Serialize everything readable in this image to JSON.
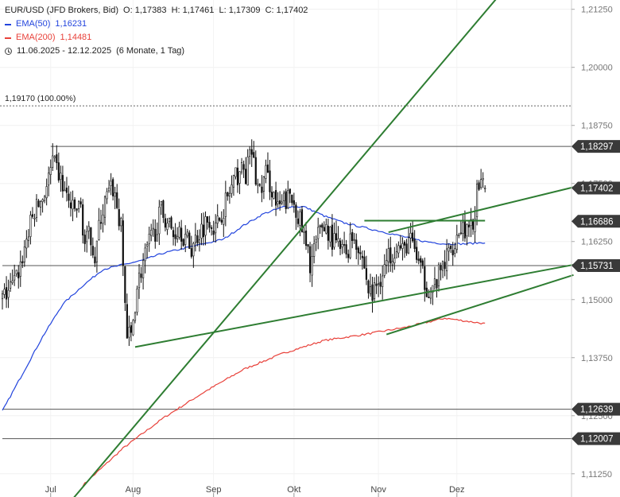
{
  "legend": {
    "symbol": "EUR/USD (JFD Brokers, Bid)",
    "ohlc": "O: 1,17383  H: 1,17461  L: 1,17309  C: 1,17402",
    "ema50_label": "EMA(50)",
    "ema50_value": "1,16231",
    "ema200_label": "EMA(200)",
    "ema200_value": "1,14481",
    "range": "11.06.2025 - 12.12.2025",
    "range_note": "(6 Monate, 1 Tag)"
  },
  "colors": {
    "candles": "#111111",
    "ema50": "#2244dd",
    "ema200": "#e8413a",
    "trendlines": "#2e7d32",
    "levels": "#555555",
    "tag_bg": "#3a3a3a"
  },
  "chart_data": {
    "type": "candlestick",
    "x_ticks": [
      "Jul",
      "Aug",
      "Sep",
      "Okt",
      "Nov",
      "Dez"
    ],
    "y_ticks": [
      "1,21250",
      "1,20000",
      "1,18750",
      "1,17500",
      "1,16250",
      "1,15000",
      "1,13750",
      "1,12500",
      "1,11250"
    ],
    "ylim": [
      1.1075,
      1.2145
    ],
    "price_tags": [
      {
        "label": "1,18297",
        "value": 1.18297
      },
      {
        "label": "1,17402",
        "value": 1.17402
      },
      {
        "label": "1,16686",
        "value": 1.16686
      },
      {
        "label": "1,15731",
        "value": 1.15731
      },
      {
        "label": "1,12639",
        "value": 1.12639
      },
      {
        "label": "1,12007",
        "value": 1.12007
      }
    ],
    "fib_level": {
      "label": "1,19170 (100.00%)",
      "value": 1.1917
    },
    "close_anchors": [
      [
        0,
        1.15
      ],
      [
        3,
        1.152
      ],
      [
        6,
        1.1535
      ],
      [
        9,
        1.1575
      ],
      [
        12,
        1.163
      ],
      [
        16,
        1.169
      ],
      [
        20,
        1.172
      ],
      [
        23,
        1.176
      ],
      [
        25,
        1.179
      ],
      [
        28,
        1.177
      ],
      [
        31,
        1.173
      ],
      [
        35,
        1.169
      ],
      [
        39,
        1.17
      ],
      [
        41,
        1.162
      ],
      [
        44,
        1.164
      ],
      [
        46,
        1.159
      ],
      [
        49,
        1.168
      ],
      [
        52,
        1.172
      ],
      [
        55,
        1.174
      ],
      [
        57,
        1.17
      ],
      [
        59,
        1.165
      ],
      [
        62,
        1.142
      ],
      [
        64,
        1.142
      ],
      [
        67,
        1.153
      ],
      [
        70,
        1.158
      ],
      [
        73,
        1.162
      ],
      [
        76,
        1.165
      ],
      [
        79,
        1.169
      ],
      [
        82,
        1.167
      ],
      [
        85,
        1.164
      ],
      [
        88,
        1.166
      ],
      [
        91,
        1.163
      ],
      [
        94,
        1.161
      ],
      [
        97,
        1.164
      ],
      [
        100,
        1.166
      ],
      [
        103,
        1.168
      ],
      [
        106,
        1.165
      ],
      [
        109,
        1.169
      ],
      [
        112,
        1.172
      ],
      [
        115,
        1.175
      ],
      [
        118,
        1.178
      ],
      [
        121,
        1.177
      ],
      [
        124,
        1.182
      ],
      [
        126,
        1.176
      ],
      [
        128,
        1.173
      ],
      [
        131,
        1.177
      ],
      [
        134,
        1.174
      ],
      [
        137,
        1.169
      ],
      [
        140,
        1.171
      ],
      [
        143,
        1.172
      ],
      [
        146,
        1.17
      ],
      [
        149,
        1.165
      ],
      [
        151,
        1.161
      ],
      [
        153,
        1.158
      ],
      [
        156,
        1.162
      ],
      [
        159,
        1.166
      ],
      [
        162,
        1.165
      ],
      [
        165,
        1.162
      ],
      [
        168,
        1.161
      ],
      [
        171,
        1.16
      ],
      [
        174,
        1.164
      ],
      [
        177,
        1.162
      ],
      [
        180,
        1.157
      ],
      [
        182,
        1.152
      ],
      [
        184,
        1.151
      ],
      [
        187,
        1.154
      ],
      [
        190,
        1.157
      ],
      [
        193,
        1.16
      ],
      [
        196,
        1.162
      ],
      [
        199,
        1.16
      ],
      [
        202,
        1.163
      ],
      [
        205,
        1.161
      ],
      [
        208,
        1.156
      ],
      [
        211,
        1.153
      ],
      [
        214,
        1.152
      ],
      [
        217,
        1.155
      ],
      [
        220,
        1.158
      ],
      [
        223,
        1.161
      ],
      [
        226,
        1.164
      ],
      [
        229,
        1.166
      ],
      [
        232,
        1.164
      ],
      [
        234,
        1.166
      ],
      [
        236,
        1.173
      ],
      [
        238,
        1.1735
      ],
      [
        240,
        1.17402
      ]
    ],
    "ema50_anchors": [
      [
        0,
        1.126
      ],
      [
        10,
        1.134
      ],
      [
        20,
        1.142
      ],
      [
        30,
        1.149
      ],
      [
        40,
        1.153
      ],
      [
        50,
        1.1565
      ],
      [
        60,
        1.1575
      ],
      [
        70,
        1.1585
      ],
      [
        80,
        1.16
      ],
      [
        90,
        1.161
      ],
      [
        100,
        1.162
      ],
      [
        110,
        1.163
      ],
      [
        120,
        1.166
      ],
      [
        130,
        1.1685
      ],
      [
        140,
        1.17
      ],
      [
        150,
        1.17
      ],
      [
        160,
        1.168
      ],
      [
        170,
        1.1665
      ],
      [
        180,
        1.1655
      ],
      [
        190,
        1.1645
      ],
      [
        200,
        1.1635
      ],
      [
        210,
        1.1625
      ],
      [
        220,
        1.162
      ],
      [
        230,
        1.162
      ],
      [
        240,
        1.16231
      ]
    ],
    "ema200_anchors": [
      [
        40,
        1.11
      ],
      [
        60,
        1.118
      ],
      [
        80,
        1.1245
      ],
      [
        100,
        1.13
      ],
      [
        120,
        1.135
      ],
      [
        140,
        1.1385
      ],
      [
        160,
        1.1412
      ],
      [
        180,
        1.1425
      ],
      [
        200,
        1.144
      ],
      [
        220,
        1.146
      ],
      [
        240,
        1.14481
      ]
    ],
    "trendlines": [
      {
        "from": [
          66,
          1.1398
        ],
        "to": [
          284,
          1.1575
        ]
      },
      {
        "from": [
          191,
          1.1425
        ],
        "to": [
          284,
          1.1553
        ]
      },
      {
        "from": [
          27,
          1.103
        ],
        "to": [
          250,
          1.217
        ]
      },
      {
        "from": [
          192,
          1.1645
        ],
        "to": [
          284,
          1.1742
        ]
      },
      {
        "from": [
          180,
          1.167
        ],
        "to": [
          240,
          1.167
        ]
      }
    ],
    "levels": [
      {
        "from": [
          24,
          1.18297
        ],
        "to": [
          284,
          1.18297
        ]
      },
      {
        "from": [
          0,
          1.15731
        ],
        "to": [
          284,
          1.15731
        ]
      },
      {
        "from": [
          0,
          1.12639
        ],
        "to": [
          284,
          1.12639
        ]
      },
      {
        "from": [
          0,
          1.12007
        ],
        "to": [
          284,
          1.12007
        ]
      }
    ]
  }
}
